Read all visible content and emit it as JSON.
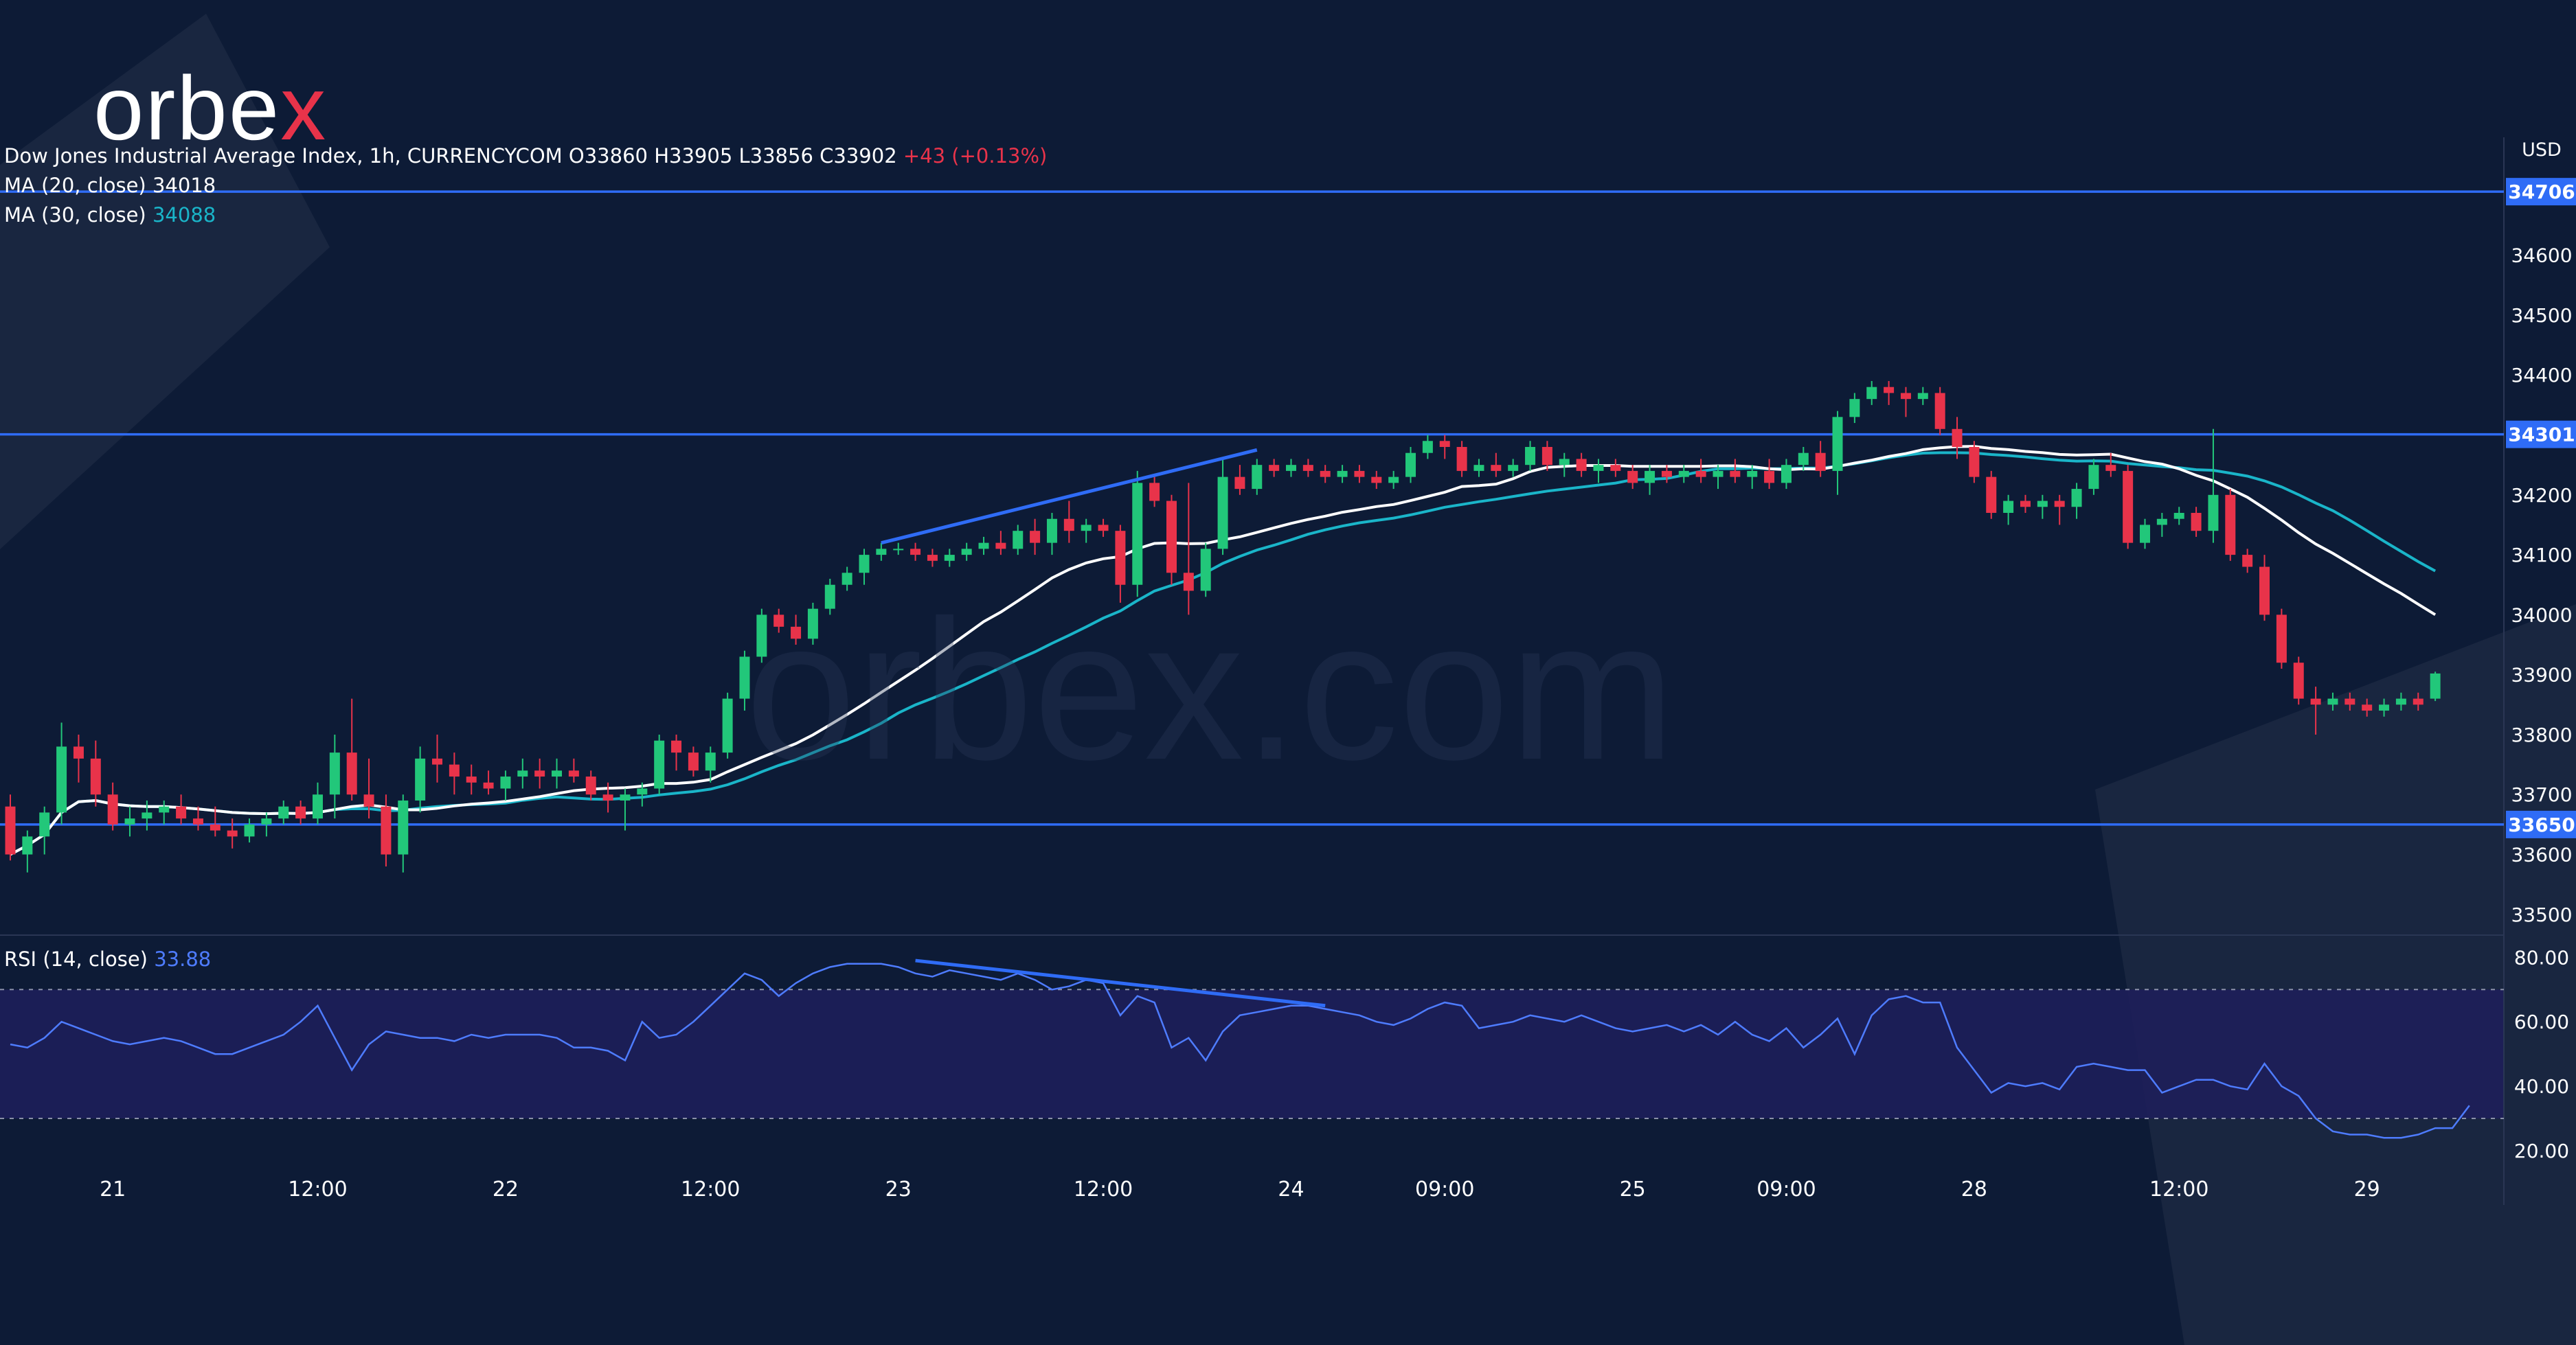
{
  "logo": {
    "text_main": "orbe",
    "text_accent": "x"
  },
  "watermark": "orbex.com",
  "header": {
    "instrument": "Dow Jones Industrial Average Index, 1h, CURRENCYCOM",
    "open": "O33860",
    "high": "H33905",
    "low": "L33856",
    "close": "C33902",
    "change": "+43 (+0.13%)"
  },
  "indicators": {
    "ma20_label": "MA (20, close)",
    "ma20_value": "34018",
    "ma30_label": "MA (30, close)",
    "ma30_value": "34088",
    "rsi_label": "RSI (14, close)",
    "rsi_value": "33.88"
  },
  "colors": {
    "background": "#0d1b36",
    "bull": "#22c77a",
    "bear": "#e8334a",
    "ma20": "#ffffff",
    "ma30": "#1ab5c9",
    "level": "#2f6cf6",
    "rsi": "#4e7cff"
  },
  "chart_data": {
    "type": "candlestick",
    "currency": "USD",
    "price_axis": {
      "min": 33470,
      "max": 34760,
      "ticks": [
        "33500",
        "33600",
        "33700",
        "33800",
        "33900",
        "34000",
        "34100",
        "34200",
        "34300",
        "34400",
        "34500",
        "34600"
      ]
    },
    "levels": [
      {
        "value": 34706,
        "label": "34706"
      },
      {
        "value": 34301,
        "label": "34301"
      },
      {
        "value": 33650,
        "label": "33650"
      }
    ],
    "rsi_axis": {
      "min": 17,
      "max": 82,
      "ticks": [
        "80.00",
        "60.00",
        "40.00",
        "20.00"
      ],
      "upper_band": 70,
      "lower_band": 30
    },
    "time_labels": [
      {
        "bar": 6,
        "label": "21"
      },
      {
        "bar": 18,
        "label": "12:00"
      },
      {
        "bar": 29,
        "label": "22"
      },
      {
        "bar": 41,
        "label": "12:00"
      },
      {
        "bar": 52,
        "label": "23"
      },
      {
        "bar": 64,
        "label": "12:00"
      },
      {
        "bar": 75,
        "label": "24"
      },
      {
        "bar": 84,
        "label": "09:00"
      },
      {
        "bar": 95,
        "label": "25"
      },
      {
        "bar": 104,
        "label": "09:00"
      },
      {
        "bar": 115,
        "label": "28"
      },
      {
        "bar": 127,
        "label": "12:00"
      },
      {
        "bar": 138,
        "label": "29"
      }
    ],
    "candles": [
      [
        33680,
        33700,
        33590,
        33600
      ],
      [
        33600,
        33640,
        33570,
        33630
      ],
      [
        33630,
        33680,
        33600,
        33670
      ],
      [
        33670,
        33820,
        33650,
        33780
      ],
      [
        33780,
        33800,
        33720,
        33760
      ],
      [
        33760,
        33790,
        33680,
        33700
      ],
      [
        33700,
        33720,
        33640,
        33650
      ],
      [
        33650,
        33680,
        33630,
        33660
      ],
      [
        33660,
        33690,
        33640,
        33670
      ],
      [
        33670,
        33690,
        33650,
        33680
      ],
      [
        33680,
        33700,
        33650,
        33660
      ],
      [
        33660,
        33680,
        33640,
        33650
      ],
      [
        33650,
        33680,
        33630,
        33640
      ],
      [
        33640,
        33660,
        33610,
        33630
      ],
      [
        33630,
        33660,
        33620,
        33650
      ],
      [
        33650,
        33670,
        33630,
        33660
      ],
      [
        33660,
        33690,
        33650,
        33680
      ],
      [
        33680,
        33690,
        33650,
        33660
      ],
      [
        33660,
        33720,
        33650,
        33700
      ],
      [
        33700,
        33800,
        33660,
        33770
      ],
      [
        33770,
        33860,
        33690,
        33700
      ],
      [
        33700,
        33760,
        33660,
        33680
      ],
      [
        33680,
        33700,
        33580,
        33600
      ],
      [
        33600,
        33700,
        33570,
        33690
      ],
      [
        33690,
        33780,
        33670,
        33760
      ],
      [
        33760,
        33800,
        33720,
        33750
      ],
      [
        33750,
        33770,
        33700,
        33730
      ],
      [
        33730,
        33750,
        33700,
        33720
      ],
      [
        33720,
        33740,
        33700,
        33710
      ],
      [
        33710,
        33740,
        33690,
        33730
      ],
      [
        33730,
        33760,
        33710,
        33740
      ],
      [
        33740,
        33760,
        33710,
        33730
      ],
      [
        33730,
        33760,
        33710,
        33740
      ],
      [
        33740,
        33760,
        33720,
        33730
      ],
      [
        33730,
        33740,
        33690,
        33700
      ],
      [
        33700,
        33720,
        33670,
        33690
      ],
      [
        33690,
        33710,
        33640,
        33700
      ],
      [
        33700,
        33720,
        33680,
        33710
      ],
      [
        33710,
        33800,
        33700,
        33790
      ],
      [
        33790,
        33800,
        33740,
        33770
      ],
      [
        33770,
        33780,
        33730,
        33740
      ],
      [
        33740,
        33780,
        33720,
        33770
      ],
      [
        33770,
        33870,
        33760,
        33860
      ],
      [
        33860,
        33940,
        33840,
        33930
      ],
      [
        33930,
        34010,
        33920,
        34000
      ],
      [
        34000,
        34010,
        33970,
        33980
      ],
      [
        33980,
        34000,
        33950,
        33960
      ],
      [
        33960,
        34020,
        33950,
        34010
      ],
      [
        34010,
        34060,
        34000,
        34050
      ],
      [
        34050,
        34080,
        34040,
        34070
      ],
      [
        34070,
        34110,
        34050,
        34100
      ],
      [
        34100,
        34120,
        34090,
        34110
      ],
      [
        34110,
        34120,
        34100,
        34110
      ],
      [
        34110,
        34120,
        34090,
        34100
      ],
      [
        34100,
        34110,
        34080,
        34090
      ],
      [
        34090,
        34110,
        34080,
        34100
      ],
      [
        34100,
        34120,
        34090,
        34110
      ],
      [
        34110,
        34130,
        34100,
        34120
      ],
      [
        34120,
        34140,
        34100,
        34110
      ],
      [
        34110,
        34150,
        34100,
        34140
      ],
      [
        34140,
        34160,
        34100,
        34120
      ],
      [
        34120,
        34170,
        34100,
        34160
      ],
      [
        34160,
        34190,
        34120,
        34140
      ],
      [
        34140,
        34160,
        34120,
        34150
      ],
      [
        34150,
        34160,
        34130,
        34140
      ],
      [
        34140,
        34150,
        34020,
        34050
      ],
      [
        34050,
        34240,
        34030,
        34220
      ],
      [
        34220,
        34230,
        34180,
        34190
      ],
      [
        34190,
        34200,
        34050,
        34070
      ],
      [
        34070,
        34220,
        34000,
        34040
      ],
      [
        34040,
        34120,
        34030,
        34110
      ],
      [
        34110,
        34260,
        34100,
        34230
      ],
      [
        34230,
        34250,
        34200,
        34210
      ],
      [
        34210,
        34260,
        34200,
        34250
      ],
      [
        34250,
        34260,
        34230,
        34240
      ],
      [
        34240,
        34260,
        34230,
        34250
      ],
      [
        34250,
        34260,
        34230,
        34240
      ],
      [
        34240,
        34250,
        34220,
        34230
      ],
      [
        34230,
        34250,
        34220,
        34240
      ],
      [
        34240,
        34250,
        34220,
        34230
      ],
      [
        34230,
        34240,
        34210,
        34220
      ],
      [
        34220,
        34240,
        34210,
        34230
      ],
      [
        34230,
        34280,
        34220,
        34270
      ],
      [
        34270,
        34300,
        34260,
        34290
      ],
      [
        34290,
        34300,
        34260,
        34280
      ],
      [
        34280,
        34290,
        34230,
        34240
      ],
      [
        34240,
        34260,
        34230,
        34250
      ],
      [
        34250,
        34270,
        34230,
        34240
      ],
      [
        34240,
        34260,
        34230,
        34250
      ],
      [
        34250,
        34290,
        34240,
        34280
      ],
      [
        34280,
        34290,
        34240,
        34250
      ],
      [
        34250,
        34270,
        34230,
        34260
      ],
      [
        34260,
        34270,
        34230,
        34240
      ],
      [
        34240,
        34260,
        34220,
        34250
      ],
      [
        34250,
        34260,
        34230,
        34240
      ],
      [
        34240,
        34250,
        34210,
        34220
      ],
      [
        34220,
        34250,
        34200,
        34240
      ],
      [
        34240,
        34250,
        34220,
        34230
      ],
      [
        34230,
        34250,
        34220,
        34240
      ],
      [
        34240,
        34260,
        34220,
        34230
      ],
      [
        34230,
        34250,
        34210,
        34240
      ],
      [
        34240,
        34260,
        34220,
        34230
      ],
      [
        34230,
        34250,
        34210,
        34240
      ],
      [
        34240,
        34260,
        34210,
        34220
      ],
      [
        34220,
        34260,
        34210,
        34250
      ],
      [
        34250,
        34280,
        34240,
        34270
      ],
      [
        34270,
        34290,
        34230,
        34240
      ],
      [
        34240,
        34340,
        34200,
        34330
      ],
      [
        34330,
        34370,
        34320,
        34360
      ],
      [
        34360,
        34390,
        34350,
        34380
      ],
      [
        34380,
        34390,
        34350,
        34370
      ],
      [
        34370,
        34380,
        34330,
        34360
      ],
      [
        34360,
        34380,
        34350,
        34370
      ],
      [
        34370,
        34380,
        34300,
        34310
      ],
      [
        34310,
        34330,
        34260,
        34280
      ],
      [
        34280,
        34290,
        34220,
        34230
      ],
      [
        34230,
        34240,
        34160,
        34170
      ],
      [
        34170,
        34200,
        34150,
        34190
      ],
      [
        34190,
        34200,
        34170,
        34180
      ],
      [
        34180,
        34200,
        34160,
        34190
      ],
      [
        34190,
        34200,
        34150,
        34180
      ],
      [
        34180,
        34220,
        34160,
        34210
      ],
      [
        34210,
        34260,
        34200,
        34250
      ],
      [
        34250,
        34270,
        34230,
        34240
      ],
      [
        34240,
        34250,
        34110,
        34120
      ],
      [
        34120,
        34160,
        34110,
        34150
      ],
      [
        34150,
        34170,
        34130,
        34160
      ],
      [
        34160,
        34180,
        34150,
        34170
      ],
      [
        34170,
        34180,
        34130,
        34140
      ],
      [
        34140,
        34310,
        34120,
        34200
      ],
      [
        34200,
        34210,
        34090,
        34100
      ],
      [
        34100,
        34110,
        34070,
        34080
      ],
      [
        34080,
        34100,
        33990,
        34000
      ],
      [
        34000,
        34010,
        33910,
        33920
      ],
      [
        33920,
        33930,
        33850,
        33860
      ],
      [
        33860,
        33880,
        33800,
        33850
      ],
      [
        33850,
        33870,
        33840,
        33860
      ],
      [
        33860,
        33870,
        33840,
        33850
      ],
      [
        33850,
        33860,
        33830,
        33840
      ],
      [
        33840,
        33860,
        33830,
        33850
      ],
      [
        33850,
        33870,
        33840,
        33860
      ],
      [
        33860,
        33870,
        33840,
        33850
      ],
      [
        33860,
        33905,
        33856,
        33902
      ]
    ],
    "rsi": [
      53,
      52,
      55,
      60,
      58,
      56,
      54,
      53,
      54,
      55,
      54,
      52,
      50,
      50,
      52,
      54,
      56,
      60,
      65,
      55,
      45,
      53,
      57,
      56,
      55,
      55,
      54,
      56,
      55,
      56,
      56,
      56,
      55,
      52,
      52,
      51,
      48,
      60,
      55,
      56,
      60,
      65,
      70,
      75,
      73,
      68,
      72,
      75,
      77,
      78,
      78,
      78,
      77,
      75,
      74,
      76,
      75,
      74,
      73,
      75,
      73,
      70,
      71,
      73,
      72,
      62,
      68,
      66,
      52,
      55,
      48,
      57,
      62,
      63,
      64,
      65,
      65,
      64,
      63,
      62,
      60,
      59,
      61,
      64,
      66,
      65,
      58,
      59,
      60,
      62,
      61,
      60,
      62,
      60,
      58,
      57,
      58,
      59,
      57,
      59,
      56,
      60,
      56,
      54,
      58,
      52,
      56,
      61,
      50,
      62,
      67,
      68,
      66,
      66,
      52,
      45,
      38,
      41,
      40,
      41,
      39,
      46,
      47,
      46,
      45,
      45,
      38,
      40,
      42,
      42,
      40,
      39,
      47,
      40,
      37,
      30,
      26,
      25,
      25,
      24,
      24,
      25,
      27,
      27,
      34
    ],
    "trendlines": [
      {
        "pane": "price",
        "from": {
          "bar": 51,
          "value": 34120
        },
        "to": {
          "bar": 73,
          "value": 34275
        }
      },
      {
        "pane": "rsi",
        "from": {
          "bar": 53,
          "value": 79
        },
        "to": {
          "bar": 77,
          "value": 65
        }
      }
    ]
  }
}
